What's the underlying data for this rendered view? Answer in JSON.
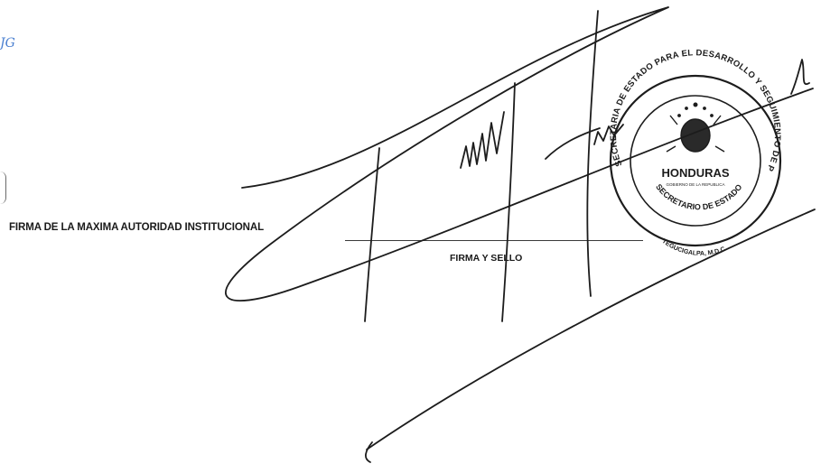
{
  "document": {
    "scrawl_text": "JG",
    "authority_signature_label": "FIRMA DE LA MAXIMA AUTORIDAD INSTITUCIONAL",
    "seal_signature_label": "FIRMA Y SELLO"
  },
  "seal": {
    "outer_text": "SECRETARIA DE ESTADO PARA EL DESARROLLO Y SEGUIMIENTO DE PROYECTOS Y ACUERDOS",
    "country": "HONDURAS",
    "subtitle": "GOBIERNO DE LA REPUBLICA",
    "inner_text": "SECRETARIO DE ESTADO",
    "location": "TEGUCIGALPA, M.D.C."
  },
  "colors": {
    "ink": "#1c1c1c",
    "blue_ink": "#4a7fd0"
  }
}
